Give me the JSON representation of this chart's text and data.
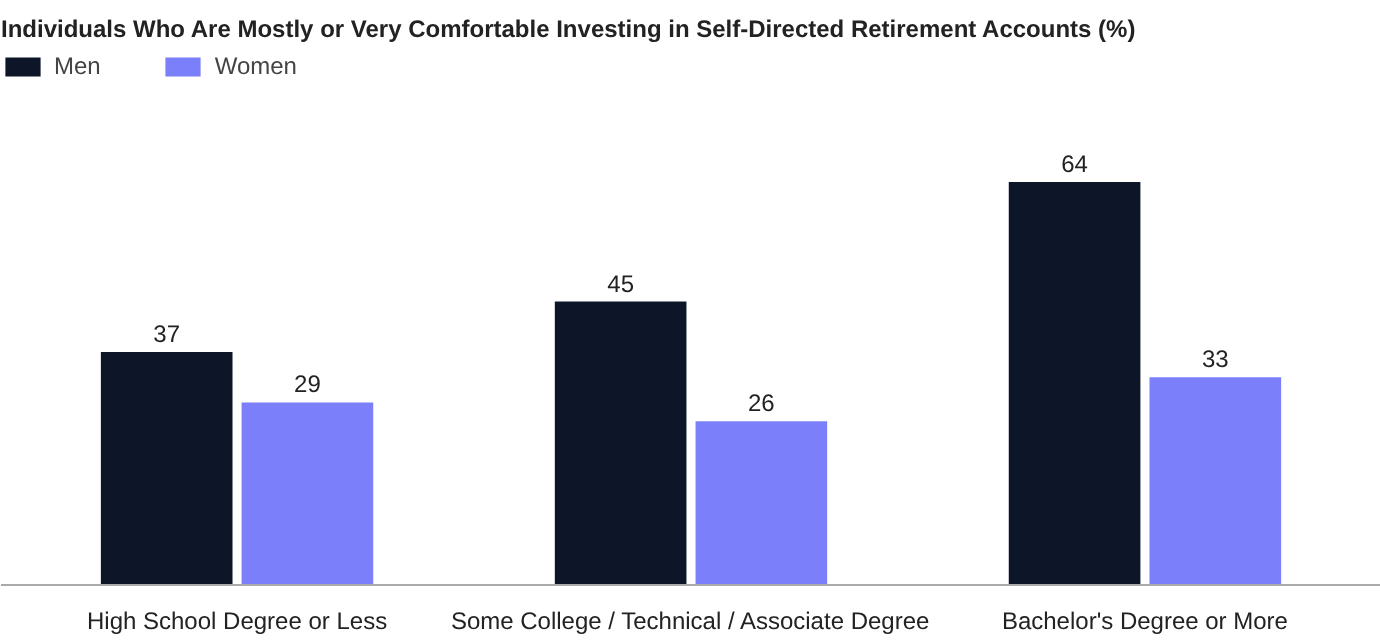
{
  "chart_data": {
    "type": "bar",
    "title": "Individuals Who Are Mostly or Very Comfortable Investing in Self-Directed Retirement Accounts (%)",
    "categories": [
      "High School Degree or Less",
      "Some College / Technical / Associate Degree",
      "Bachelor's Degree or More"
    ],
    "series": [
      {
        "name": "Men",
        "color": "#0d1628",
        "values": [
          37,
          45,
          64
        ]
      },
      {
        "name": "Women",
        "color": "#7b7ffa",
        "values": [
          29,
          26,
          33
        ]
      }
    ],
    "data_labels": true,
    "legend": "top left",
    "grid": false
  }
}
